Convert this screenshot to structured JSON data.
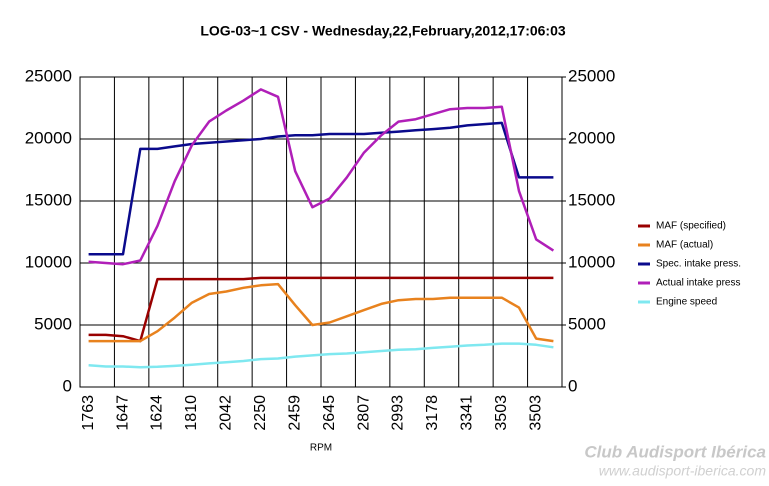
{
  "chart_data": {
    "type": "line",
    "title": "LOG-03~1 CSV - Wednesday,22,February,2012,17:06:03",
    "x_label": "RPM",
    "categories": [
      "1763",
      null,
      "1647",
      null,
      "1624",
      null,
      "1810",
      null,
      "2042",
      null,
      "2250",
      null,
      "2459",
      null,
      "2645",
      null,
      "2807",
      null,
      "2993",
      null,
      "3178",
      null,
      "3341",
      null,
      "3503",
      null,
      "3503",
      null
    ],
    "series": [
      {
        "name": "MAF (specified)",
        "color": "#990000",
        "values": [
          4200,
          4200,
          4100,
          3700,
          8700,
          8700,
          8700,
          8700,
          8700,
          8700,
          8800,
          8800,
          8800,
          8800,
          8800,
          8800,
          8800,
          8800,
          8800,
          8800,
          8800,
          8800,
          8800,
          8800,
          8800,
          8800,
          8800,
          8800
        ]
      },
      {
        "name": "MAF (actual)",
        "color": "#e8821e",
        "values": [
          3700,
          3700,
          3700,
          3700,
          4500,
          5600,
          6800,
          7500,
          7700,
          8000,
          8200,
          8300,
          6600,
          5000,
          5200,
          5700,
          6200,
          6700,
          7000,
          7100,
          7100,
          7200,
          7200,
          7200,
          7200,
          6400,
          3900,
          3700
        ]
      },
      {
        "name": "Spec. intake press.",
        "color": "#0a0a8c",
        "values": [
          10700,
          10700,
          10700,
          19200,
          19200,
          19400,
          19600,
          19700,
          19800,
          19900,
          20000,
          20200,
          20300,
          20300,
          20400,
          20400,
          20400,
          20500,
          20600,
          20700,
          20800,
          20900,
          21100,
          21200,
          21300,
          16900,
          16900,
          16900
        ]
      },
      {
        "name": "Actual intake press",
        "color": "#b01fb8",
        "values": [
          10100,
          10000,
          9900,
          10200,
          13000,
          16600,
          19500,
          21400,
          22300,
          23100,
          24000,
          23400,
          17400,
          14500,
          15200,
          16900,
          18900,
          20300,
          21400,
          21600,
          22000,
          22400,
          22500,
          22500,
          22600,
          15800,
          11900,
          11000
        ]
      },
      {
        "name": "Engine speed",
        "color": "#7fe8f0",
        "values": [
          1750,
          1650,
          1650,
          1600,
          1630,
          1700,
          1800,
          1900,
          2000,
          2100,
          2250,
          2300,
          2450,
          2550,
          2650,
          2700,
          2800,
          2900,
          3000,
          3050,
          3150,
          3250,
          3350,
          3400,
          3500,
          3500,
          3400,
          3200
        ]
      }
    ],
    "ylim": [
      0,
      25000
    ],
    "yticks": [
      0,
      5000,
      10000,
      15000,
      20000,
      25000
    ],
    "y2lim": [
      0,
      25000
    ],
    "y2ticks": [
      0,
      5000,
      10000,
      15000,
      20000,
      25000
    ],
    "grid": true,
    "legend": "right",
    "annotations": [
      "Club Audisport Ibérica",
      "www.audisport-iberica.com"
    ]
  }
}
